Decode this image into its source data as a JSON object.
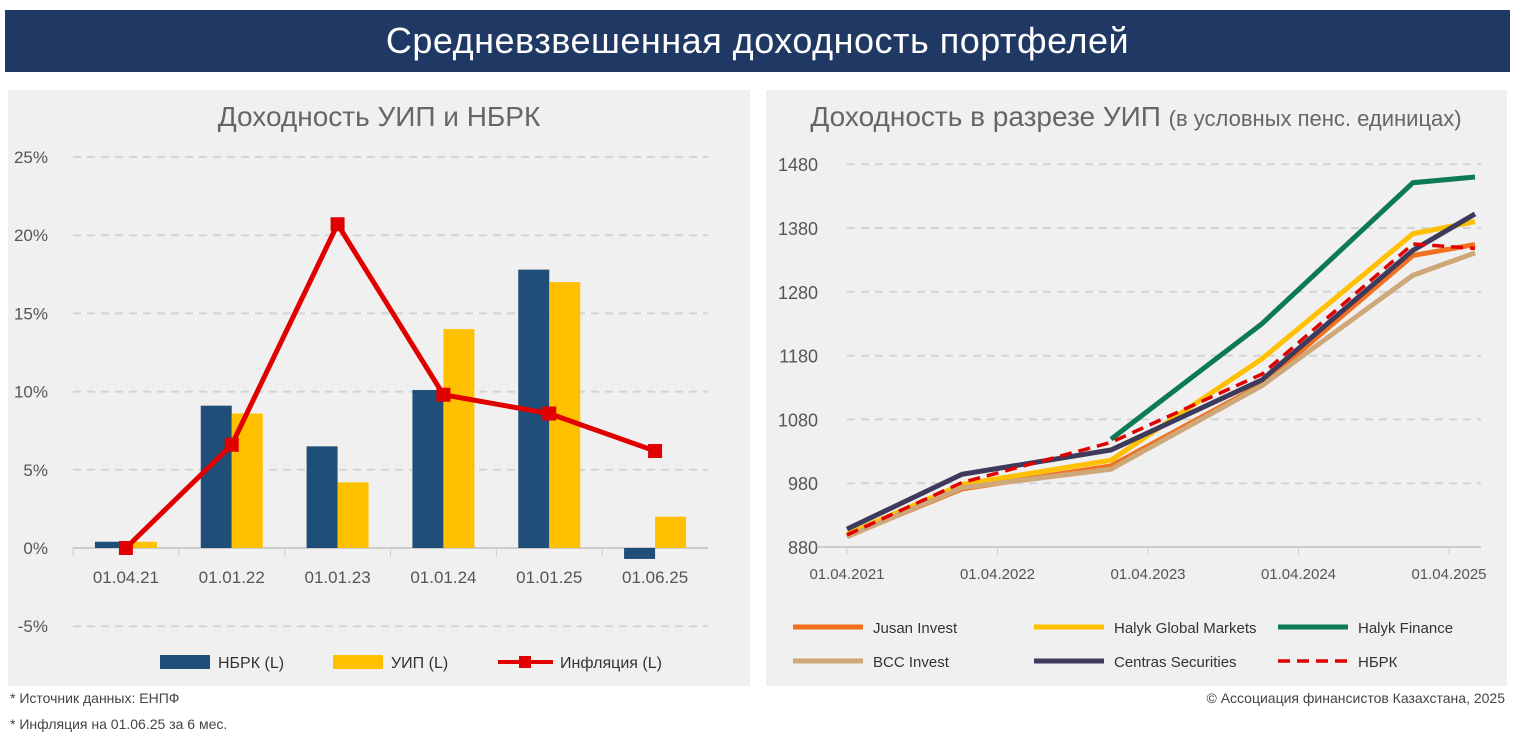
{
  "header": {
    "title": "Средневзвешенная доходность портфелей"
  },
  "chart_data": [
    {
      "type": "bar",
      "title": "Доходность УИП и НБРК",
      "categories": [
        "01.04.21",
        "01.01.22",
        "01.01.23",
        "01.01.24",
        "01.01.25",
        "01.06.25"
      ],
      "yticks": [
        "-5%",
        "0%",
        "5%",
        "10%",
        "15%",
        "20%",
        "25%"
      ],
      "ylim": [
        -5,
        25
      ],
      "series": [
        {
          "name": "НБРК (L)",
          "kind": "bar",
          "color": "#1f4e79",
          "values": [
            0.4,
            9.1,
            6.5,
            10.1,
            17.8,
            -0.7
          ]
        },
        {
          "name": "УИП (L)",
          "kind": "bar",
          "color": "#ffc000",
          "values": [
            0.4,
            8.6,
            4.2,
            14.0,
            17.0,
            2.0
          ]
        },
        {
          "name": "Инфляция (L)",
          "kind": "line",
          "color": "#e00000",
          "values": [
            0.0,
            6.6,
            20.7,
            9.8,
            8.6,
            6.2
          ]
        }
      ],
      "legend": "bottom"
    },
    {
      "type": "line",
      "title": "Доходность в разрезе УИП",
      "subtitle": "(в условных пенс. единицах)",
      "xticks": [
        "01.04.2021",
        "01.04.2022",
        "01.04.2023",
        "01.04.2024",
        "01.04.2025"
      ],
      "x": [
        "01.04.2021",
        "01.01.2022",
        "01.01.2023",
        "01.01.2024",
        "01.01.2025",
        "01.06.2025"
      ],
      "yticks": [
        "880",
        "980",
        "1080",
        "1180",
        "1280",
        "1380",
        "1480"
      ],
      "ylim": [
        880,
        1480
      ],
      "series": [
        {
          "name": "Jusan Invest",
          "color": "#f07020",
          "values": [
            897,
            971,
            1007,
            1135,
            1337,
            1354
          ]
        },
        {
          "name": "Halyk Global Markets",
          "color": "#ffc000",
          "values": [
            900,
            978,
            1016,
            1175,
            1371,
            1390
          ]
        },
        {
          "name": "Halyk Finance",
          "color": "#0b7a55",
          "values": [
            null,
            null,
            1049,
            1230,
            1451,
            1460
          ]
        },
        {
          "name": "BCC Invest",
          "color": "#cfa87a",
          "values": [
            896,
            973,
            1002,
            1133,
            1306,
            1341
          ]
        },
        {
          "name": "Centras Securities",
          "color": "#3d3a5c",
          "values": [
            908,
            994,
            1032,
            1142,
            1345,
            1402
          ]
        },
        {
          "name": "НБРК",
          "color": "#e00000",
          "dashed": true,
          "values": [
            899,
            981,
            1044,
            1151,
            1355,
            1348
          ]
        }
      ],
      "legend": "bottom"
    }
  ],
  "notes": {
    "source": "* Источник данных: ЕНПФ",
    "inflation": "* Инфляция на 01.06.25 за 6 мес.",
    "copyright": "© Ассоциация финансистов Казахстана, 2025"
  }
}
